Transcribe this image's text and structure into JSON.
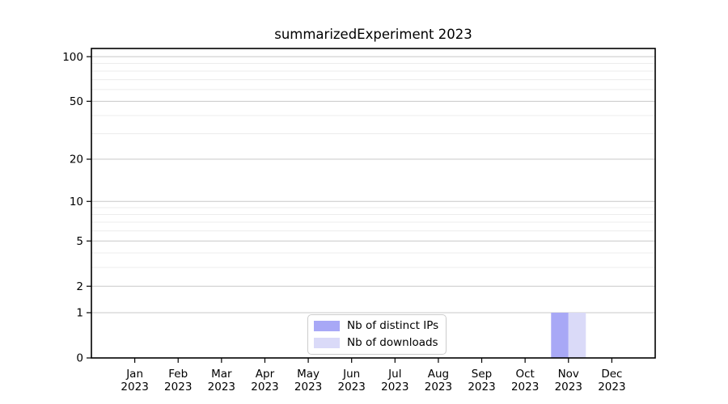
{
  "chart_data": {
    "type": "bar",
    "title": "summarizedExperiment 2023",
    "categories": [
      {
        "month": "Jan",
        "year": "2023"
      },
      {
        "month": "Feb",
        "year": "2023"
      },
      {
        "month": "Mar",
        "year": "2023"
      },
      {
        "month": "Apr",
        "year": "2023"
      },
      {
        "month": "May",
        "year": "2023"
      },
      {
        "month": "Jun",
        "year": "2023"
      },
      {
        "month": "Jul",
        "year": "2023"
      },
      {
        "month": "Aug",
        "year": "2023"
      },
      {
        "month": "Sep",
        "year": "2023"
      },
      {
        "month": "Oct",
        "year": "2023"
      },
      {
        "month": "Nov",
        "year": "2023"
      },
      {
        "month": "Dec",
        "year": "2023"
      }
    ],
    "series": [
      {
        "name": "Nb of distinct IPs",
        "color": "#a8a8f6",
        "values": [
          0,
          0,
          0,
          0,
          0,
          0,
          0,
          0,
          0,
          0,
          1,
          0
        ]
      },
      {
        "name": "Nb of downloads",
        "color": "#dadaf8",
        "values": [
          0,
          0,
          0,
          0,
          0,
          0,
          0,
          0,
          0,
          0,
          1,
          0
        ]
      }
    ],
    "yscale": "log1p",
    "yticks": [
      0,
      1,
      2,
      5,
      10,
      20,
      50,
      100
    ],
    "yticks_minor": [
      3,
      4,
      6,
      7,
      8,
      9,
      30,
      40,
      60,
      70,
      80,
      90
    ],
    "ylim": [
      0,
      113.5
    ],
    "xlabel": "",
    "ylabel": "",
    "grid": "horizontal",
    "legend_position": "lower center",
    "colors": {
      "major_grid": "#c8c8c8",
      "minor_grid": "#ececec",
      "spine": "#000000",
      "background": "#ffffff"
    }
  }
}
